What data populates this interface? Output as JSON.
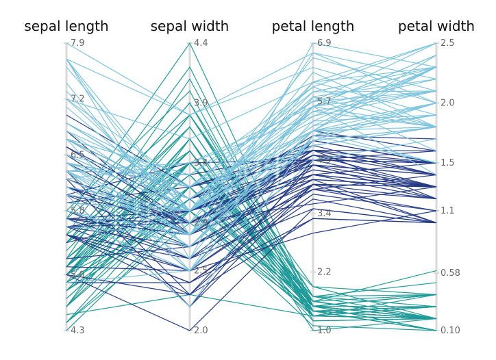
{
  "chart_data": {
    "type": "parallel_coordinates",
    "dimensions": [
      {
        "key": "sepal_length",
        "label": "sepal length",
        "range": [
          4.3,
          7.9
        ],
        "ticks": [
          4.3,
          5.0,
          5.8,
          6.5,
          7.2,
          7.9
        ],
        "tick_labels": [
          "4.3",
          "5.0",
          "5.8",
          "6.5",
          "7.2",
          "7.9"
        ]
      },
      {
        "key": "sepal_width",
        "label": "sepal width",
        "range": [
          2.0,
          4.4
        ],
        "ticks": [
          2.0,
          2.5,
          2.9,
          3.4,
          3.9,
          4.4
        ],
        "tick_labels": [
          "2.0",
          "2.5",
          "2.9",
          "3.4",
          "3.9",
          "4.4"
        ]
      },
      {
        "key": "petal_length",
        "label": "petal length",
        "range": [
          1.0,
          6.9
        ],
        "ticks": [
          1.0,
          2.2,
          3.4,
          4.5,
          5.7,
          6.9
        ],
        "tick_labels": [
          "1.0",
          "2.2",
          "3.4",
          "4.5",
          "5.7",
          "6.9"
        ]
      },
      {
        "key": "petal_width",
        "label": "petal width",
        "range": [
          0.1,
          2.5
        ],
        "ticks": [
          0.1,
          0.58,
          1.1,
          1.5,
          2.0,
          2.5
        ],
        "tick_labels": [
          "0.10",
          "0.58",
          "1.1",
          "1.5",
          "2.0",
          "2.5"
        ]
      }
    ],
    "groups": [
      {
        "color": "#1f9b99",
        "rows": [
          [
            5.1,
            3.5,
            1.4,
            0.2
          ],
          [
            4.9,
            3.0,
            1.4,
            0.2
          ],
          [
            4.7,
            3.2,
            1.3,
            0.2
          ],
          [
            4.6,
            3.1,
            1.5,
            0.2
          ],
          [
            5.0,
            3.6,
            1.4,
            0.2
          ],
          [
            5.4,
            3.9,
            1.7,
            0.4
          ],
          [
            4.6,
            3.4,
            1.4,
            0.3
          ],
          [
            5.0,
            3.4,
            1.5,
            0.2
          ],
          [
            4.4,
            2.9,
            1.4,
            0.2
          ],
          [
            4.9,
            3.1,
            1.5,
            0.1
          ],
          [
            5.4,
            3.7,
            1.5,
            0.2
          ],
          [
            4.8,
            3.4,
            1.6,
            0.2
          ],
          [
            4.8,
            3.0,
            1.4,
            0.1
          ],
          [
            4.3,
            3.0,
            1.1,
            0.1
          ],
          [
            5.8,
            4.0,
            1.2,
            0.2
          ],
          [
            5.7,
            4.4,
            1.5,
            0.4
          ],
          [
            5.4,
            3.9,
            1.3,
            0.4
          ],
          [
            5.1,
            3.5,
            1.4,
            0.3
          ],
          [
            5.7,
            3.8,
            1.7,
            0.3
          ],
          [
            5.1,
            3.8,
            1.5,
            0.3
          ],
          [
            5.4,
            3.4,
            1.7,
            0.2
          ],
          [
            5.1,
            3.7,
            1.5,
            0.4
          ],
          [
            4.6,
            3.6,
            1.0,
            0.2
          ],
          [
            5.1,
            3.3,
            1.7,
            0.5
          ],
          [
            4.8,
            3.4,
            1.9,
            0.2
          ],
          [
            5.0,
            3.0,
            1.6,
            0.2
          ],
          [
            5.0,
            3.4,
            1.6,
            0.4
          ],
          [
            5.2,
            3.5,
            1.5,
            0.2
          ],
          [
            5.2,
            3.4,
            1.4,
            0.2
          ],
          [
            4.7,
            3.2,
            1.6,
            0.2
          ],
          [
            4.8,
            3.1,
            1.6,
            0.2
          ],
          [
            5.4,
            3.4,
            1.5,
            0.4
          ],
          [
            5.2,
            4.1,
            1.5,
            0.1
          ],
          [
            5.5,
            4.2,
            1.4,
            0.2
          ],
          [
            4.9,
            3.1,
            1.5,
            0.2
          ],
          [
            5.0,
            3.2,
            1.2,
            0.2
          ],
          [
            5.5,
            3.5,
            1.3,
            0.2
          ],
          [
            4.9,
            3.6,
            1.4,
            0.1
          ],
          [
            4.4,
            3.0,
            1.3,
            0.2
          ],
          [
            5.1,
            3.4,
            1.5,
            0.2
          ],
          [
            5.0,
            3.5,
            1.3,
            0.3
          ],
          [
            4.5,
            2.3,
            1.3,
            0.3
          ],
          [
            4.4,
            3.2,
            1.3,
            0.2
          ],
          [
            5.0,
            3.5,
            1.6,
            0.6
          ],
          [
            5.1,
            3.8,
            1.9,
            0.4
          ],
          [
            4.8,
            3.0,
            1.4,
            0.3
          ],
          [
            5.1,
            3.8,
            1.6,
            0.2
          ],
          [
            4.6,
            3.2,
            1.4,
            0.2
          ],
          [
            5.3,
            3.7,
            1.5,
            0.2
          ],
          [
            5.0,
            3.3,
            1.4,
            0.2
          ]
        ]
      },
      {
        "color": "#243a86",
        "rows": [
          [
            7.0,
            3.2,
            4.7,
            1.4
          ],
          [
            6.4,
            3.2,
            4.5,
            1.5
          ],
          [
            6.9,
            3.1,
            4.9,
            1.5
          ],
          [
            5.5,
            2.3,
            4.0,
            1.3
          ],
          [
            6.5,
            2.8,
            4.6,
            1.5
          ],
          [
            5.7,
            2.8,
            4.5,
            1.3
          ],
          [
            6.3,
            3.3,
            4.7,
            1.6
          ],
          [
            4.9,
            2.4,
            3.3,
            1.0
          ],
          [
            6.6,
            2.9,
            4.6,
            1.3
          ],
          [
            5.2,
            2.7,
            3.9,
            1.4
          ],
          [
            5.0,
            2.0,
            3.5,
            1.0
          ],
          [
            5.9,
            3.0,
            4.2,
            1.5
          ],
          [
            6.0,
            2.2,
            4.0,
            1.0
          ],
          [
            6.1,
            2.9,
            4.7,
            1.4
          ],
          [
            5.6,
            2.9,
            3.6,
            1.3
          ],
          [
            6.7,
            3.1,
            4.4,
            1.4
          ],
          [
            5.6,
            3.0,
            4.5,
            1.5
          ],
          [
            5.8,
            2.7,
            4.1,
            1.0
          ],
          [
            6.2,
            2.2,
            4.5,
            1.5
          ],
          [
            5.6,
            2.5,
            3.9,
            1.1
          ],
          [
            5.9,
            3.2,
            4.8,
            1.8
          ],
          [
            6.1,
            2.8,
            4.0,
            1.3
          ],
          [
            6.3,
            2.5,
            4.9,
            1.5
          ],
          [
            6.1,
            2.8,
            4.7,
            1.2
          ],
          [
            6.4,
            2.9,
            4.3,
            1.3
          ],
          [
            6.6,
            3.0,
            4.4,
            1.4
          ],
          [
            6.8,
            2.8,
            4.8,
            1.4
          ],
          [
            6.7,
            3.0,
            5.0,
            1.7
          ],
          [
            6.0,
            2.9,
            4.5,
            1.5
          ],
          [
            5.7,
            2.6,
            3.5,
            1.0
          ],
          [
            5.5,
            2.4,
            3.8,
            1.1
          ],
          [
            5.5,
            2.4,
            3.7,
            1.0
          ],
          [
            5.8,
            2.7,
            3.9,
            1.2
          ],
          [
            6.0,
            2.7,
            5.1,
            1.6
          ],
          [
            5.4,
            3.0,
            4.5,
            1.5
          ],
          [
            6.0,
            3.4,
            4.5,
            1.6
          ],
          [
            6.7,
            3.1,
            4.7,
            1.5
          ],
          [
            6.3,
            2.3,
            4.4,
            1.3
          ],
          [
            5.6,
            3.0,
            4.1,
            1.3
          ],
          [
            5.5,
            2.5,
            4.0,
            1.3
          ],
          [
            5.5,
            2.6,
            4.4,
            1.2
          ],
          [
            6.1,
            3.0,
            4.6,
            1.4
          ],
          [
            5.8,
            2.6,
            4.0,
            1.2
          ],
          [
            5.0,
            2.3,
            3.3,
            1.0
          ],
          [
            5.6,
            2.7,
            4.2,
            1.3
          ],
          [
            5.7,
            3.0,
            4.2,
            1.2
          ],
          [
            5.7,
            2.9,
            4.2,
            1.3
          ],
          [
            6.2,
            2.9,
            4.3,
            1.3
          ],
          [
            5.1,
            2.5,
            3.0,
            1.1
          ],
          [
            5.7,
            2.8,
            4.1,
            1.3
          ]
        ]
      },
      {
        "color": "#7cc4de",
        "rows": [
          [
            6.3,
            3.3,
            6.0,
            2.5
          ],
          [
            5.8,
            2.7,
            5.1,
            1.9
          ],
          [
            7.1,
            3.0,
            5.9,
            2.1
          ],
          [
            6.3,
            2.9,
            5.6,
            1.8
          ],
          [
            6.5,
            3.0,
            5.8,
            2.2
          ],
          [
            7.6,
            3.0,
            6.6,
            2.1
          ],
          [
            4.9,
            2.5,
            4.5,
            1.7
          ],
          [
            7.3,
            2.9,
            6.3,
            1.8
          ],
          [
            6.7,
            2.5,
            5.8,
            1.8
          ],
          [
            7.2,
            3.6,
            6.1,
            2.5
          ],
          [
            6.5,
            3.2,
            5.1,
            2.0
          ],
          [
            6.4,
            2.7,
            5.3,
            1.9
          ],
          [
            6.8,
            3.0,
            5.5,
            2.1
          ],
          [
            5.7,
            2.5,
            5.0,
            2.0
          ],
          [
            5.8,
            2.8,
            5.1,
            2.4
          ],
          [
            6.4,
            3.2,
            5.3,
            2.3
          ],
          [
            6.5,
            3.0,
            5.5,
            1.8
          ],
          [
            7.7,
            3.8,
            6.7,
            2.2
          ],
          [
            7.7,
            2.6,
            6.9,
            2.3
          ],
          [
            6.0,
            2.2,
            5.0,
            1.5
          ],
          [
            6.9,
            3.2,
            5.7,
            2.3
          ],
          [
            5.6,
            2.8,
            4.9,
            2.0
          ],
          [
            7.7,
            2.8,
            6.7,
            2.0
          ],
          [
            6.3,
            2.7,
            4.9,
            1.8
          ],
          [
            6.7,
            3.3,
            5.7,
            2.1
          ],
          [
            7.2,
            3.2,
            6.0,
            1.8
          ],
          [
            6.2,
            2.8,
            4.8,
            1.8
          ],
          [
            6.1,
            3.0,
            4.9,
            1.8
          ],
          [
            6.4,
            2.8,
            5.6,
            2.1
          ],
          [
            7.2,
            3.0,
            5.8,
            1.6
          ],
          [
            7.4,
            2.8,
            6.1,
            1.9
          ],
          [
            7.9,
            3.8,
            6.4,
            2.0
          ],
          [
            6.4,
            2.8,
            5.6,
            2.2
          ],
          [
            6.3,
            2.8,
            5.1,
            1.5
          ],
          [
            6.1,
            2.6,
            5.6,
            1.4
          ],
          [
            7.7,
            3.0,
            6.1,
            2.3
          ],
          [
            6.3,
            3.4,
            5.6,
            2.4
          ],
          [
            6.4,
            3.1,
            5.5,
            1.8
          ],
          [
            6.0,
            3.0,
            4.8,
            1.8
          ],
          [
            6.9,
            3.1,
            5.4,
            2.1
          ],
          [
            6.7,
            3.1,
            5.6,
            2.4
          ],
          [
            6.9,
            3.1,
            5.1,
            2.3
          ],
          [
            5.8,
            2.7,
            5.1,
            1.9
          ],
          [
            6.8,
            3.2,
            5.9,
            2.3
          ],
          [
            6.7,
            3.3,
            5.7,
            2.5
          ],
          [
            6.7,
            3.0,
            5.2,
            2.3
          ],
          [
            6.3,
            2.5,
            5.0,
            1.9
          ],
          [
            6.5,
            3.0,
            5.2,
            2.0
          ],
          [
            6.2,
            3.4,
            5.4,
            2.3
          ],
          [
            5.9,
            3.0,
            5.1,
            1.8
          ]
        ]
      }
    ]
  }
}
